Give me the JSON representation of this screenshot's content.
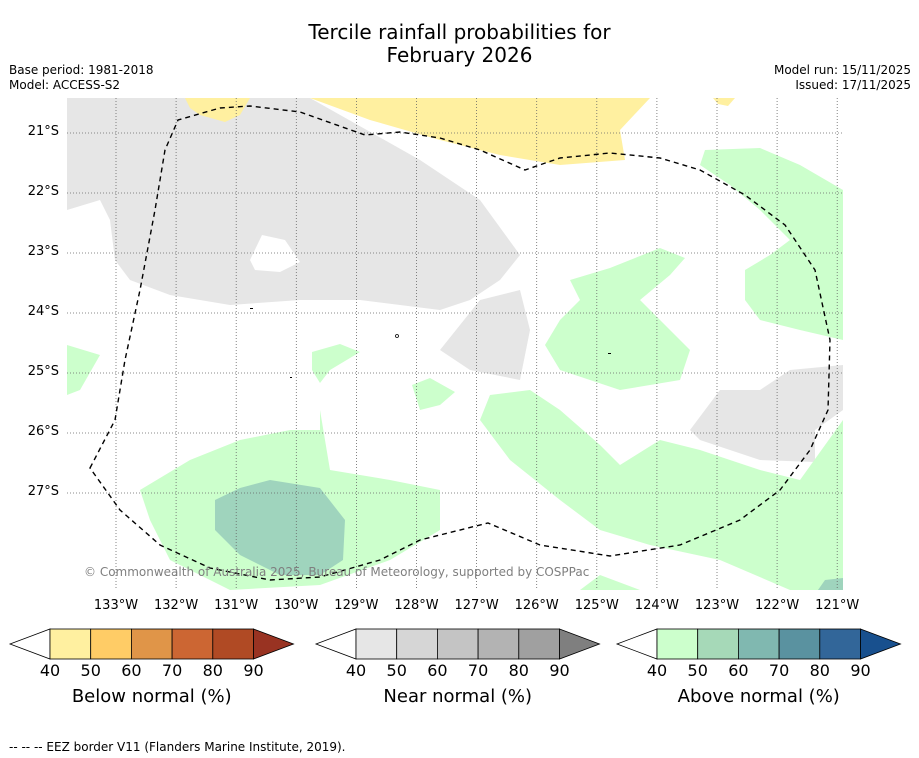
{
  "title": {
    "line1": "Tercile rainfall probabilities for",
    "line2": "February 2026"
  },
  "meta": {
    "base_period": "Base period: 1981-2018",
    "model": "Model: ACCESS-S2",
    "model_run": "Model run: 15/11/2025",
    "issued": "Issued: 17/11/2025"
  },
  "map": {
    "lon_labels": [
      "133°W",
      "132°W",
      "131°W",
      "130°W",
      "129°W",
      "128°W",
      "127°W",
      "126°W",
      "125°W",
      "124°W",
      "123°W",
      "122°W",
      "121°W"
    ],
    "lat_labels": [
      "21°S",
      "22°S",
      "23°S",
      "24°S",
      "25°S",
      "26°S",
      "27°S"
    ],
    "copyright": "© Commonwealth of Australia 2025, Bureau of Meteorology, supported by COSPPac",
    "colors": {
      "below_40": "#fff0a0",
      "near_40": "#e6e6e6",
      "above_40": "#ccffcc",
      "above_50": "#9fd4bd",
      "grid": "#666666",
      "eez": "#000000"
    }
  },
  "colorbars": [
    {
      "title": "Below normal (%)",
      "ticks": [
        "40",
        "50",
        "60",
        "70",
        "80",
        "90"
      ],
      "colors": [
        "#ffffff",
        "#fff0a0",
        "#ffcc66",
        "#e09548",
        "#cc6633",
        "#b04a24",
        "#993322"
      ]
    },
    {
      "title": "Near normal (%)",
      "ticks": [
        "40",
        "50",
        "60",
        "70",
        "80",
        "90"
      ],
      "colors": [
        "#ffffff",
        "#e6e6e6",
        "#d6d6d6",
        "#c4c4c4",
        "#b3b3b3",
        "#a0a0a0",
        "#7f7f7f"
      ]
    },
    {
      "title": "Above normal (%)",
      "ticks": [
        "40",
        "50",
        "60",
        "70",
        "80",
        "90"
      ],
      "colors": [
        "#ffffff",
        "#ccffcc",
        "#a6d9b8",
        "#80b8b0",
        "#5a92a0",
        "#326699",
        "#18508e"
      ]
    }
  ],
  "footer": "--  --  -- EEZ border V11 (Flanders Marine Institute, 2019)."
}
